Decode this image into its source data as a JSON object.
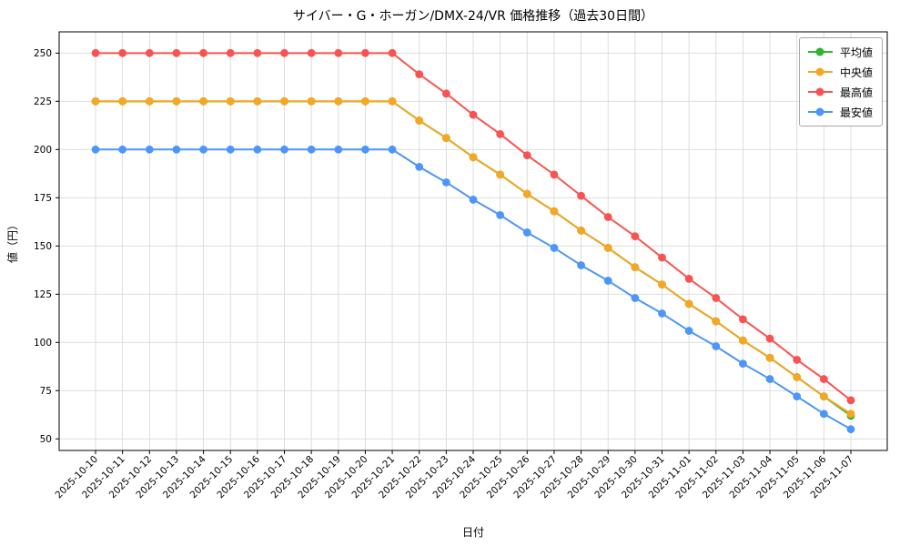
{
  "chart_data": {
    "type": "line",
    "title": "サイバー・G・ホーガン/DMX-24/VR 価格推移（過去30日間）",
    "xlabel": "日付",
    "ylabel": "値（円）",
    "ylim": [
      44,
      261
    ],
    "yticks": [
      50,
      75,
      100,
      125,
      150,
      175,
      200,
      225,
      250
    ],
    "grid": true,
    "legend_position": "upper right",
    "marker": "circle",
    "categories": [
      "2025-10-10",
      "2025-10-11",
      "2025-10-12",
      "2025-10-13",
      "2025-10-14",
      "2025-10-15",
      "2025-10-16",
      "2025-10-17",
      "2025-10-18",
      "2025-10-19",
      "2025-10-20",
      "2025-10-21",
      "2025-10-22",
      "2025-10-23",
      "2025-10-24",
      "2025-10-25",
      "2025-10-26",
      "2025-10-27",
      "2025-10-28",
      "2025-10-29",
      "2025-10-30",
      "2025-10-31",
      "2025-11-01",
      "2025-11-02",
      "2025-11-03",
      "2025-11-04",
      "2025-11-05",
      "2025-11-06",
      "2025-11-07"
    ],
    "series": [
      {
        "id": "average",
        "name": "平均値",
        "color": "#2db52d",
        "values": [
          225,
          225,
          225,
          225,
          225,
          225,
          225,
          225,
          225,
          225,
          225,
          225,
          215,
          206,
          196,
          187,
          177,
          168,
          158,
          149,
          139,
          130,
          120,
          111,
          101,
          92,
          82,
          72,
          62
        ]
      },
      {
        "id": "median",
        "name": "中央値",
        "color": "#f5a623",
        "values": [
          225,
          225,
          225,
          225,
          225,
          225,
          225,
          225,
          225,
          225,
          225,
          225,
          215,
          206,
          196,
          187,
          177,
          168,
          158,
          149,
          139,
          130,
          120,
          111,
          101,
          92,
          82,
          72,
          63
        ]
      },
      {
        "id": "max",
        "name": "最高値",
        "color": "#fa5252",
        "values": [
          250,
          250,
          250,
          250,
          250,
          250,
          250,
          250,
          250,
          250,
          250,
          250,
          239,
          229,
          218,
          208,
          197,
          187,
          176,
          165,
          155,
          144,
          133,
          123,
          112,
          102,
          91,
          81,
          70
        ]
      },
      {
        "id": "min",
        "name": "最安値",
        "color": "#4d96f9",
        "values": [
          200,
          200,
          200,
          200,
          200,
          200,
          200,
          200,
          200,
          200,
          200,
          200,
          191,
          183,
          174,
          166,
          157,
          149,
          140,
          132,
          123,
          115,
          106,
          98,
          89,
          81,
          72,
          63,
          55
        ]
      }
    ]
  }
}
